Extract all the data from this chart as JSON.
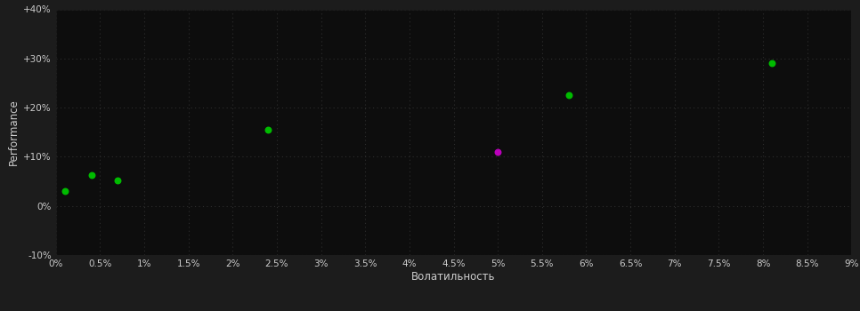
{
  "background_color": "#1c1c1c",
  "plot_bg_color": "#0d0d0d",
  "grid_color": "#2e2e2e",
  "text_color": "#cccccc",
  "xlabel": "Волатильность",
  "ylabel": "Performance",
  "xlim": [
    0,
    0.09
  ],
  "ylim": [
    -0.1,
    0.4
  ],
  "xtick_labels": [
    "0%",
    "0.5%",
    "1%",
    "1.5%",
    "2%",
    "2.5%",
    "3%",
    "3.5%",
    "4%",
    "4.5%",
    "5%",
    "5.5%",
    "6%",
    "6.5%",
    "7%",
    "7.5%",
    "8%",
    "8.5%",
    "9%"
  ],
  "xtick_vals": [
    0,
    0.005,
    0.01,
    0.015,
    0.02,
    0.025,
    0.03,
    0.035,
    0.04,
    0.045,
    0.05,
    0.055,
    0.06,
    0.065,
    0.07,
    0.075,
    0.08,
    0.085,
    0.09
  ],
  "ytick_labels": [
    "-10%",
    "0%",
    "+10%",
    "+20%",
    "+30%",
    "+40%"
  ],
  "ytick_vals": [
    -0.1,
    0.0,
    0.1,
    0.2,
    0.3,
    0.4
  ],
  "green_points": [
    [
      0.001,
      0.03
    ],
    [
      0.004,
      0.062
    ],
    [
      0.007,
      0.052
    ],
    [
      0.024,
      0.155
    ],
    [
      0.058,
      0.225
    ],
    [
      0.081,
      0.29
    ]
  ],
  "magenta_points": [
    [
      0.05,
      0.11
    ]
  ],
  "green_color": "#00bb00",
  "magenta_color": "#bb00bb",
  "dot_size": 22
}
